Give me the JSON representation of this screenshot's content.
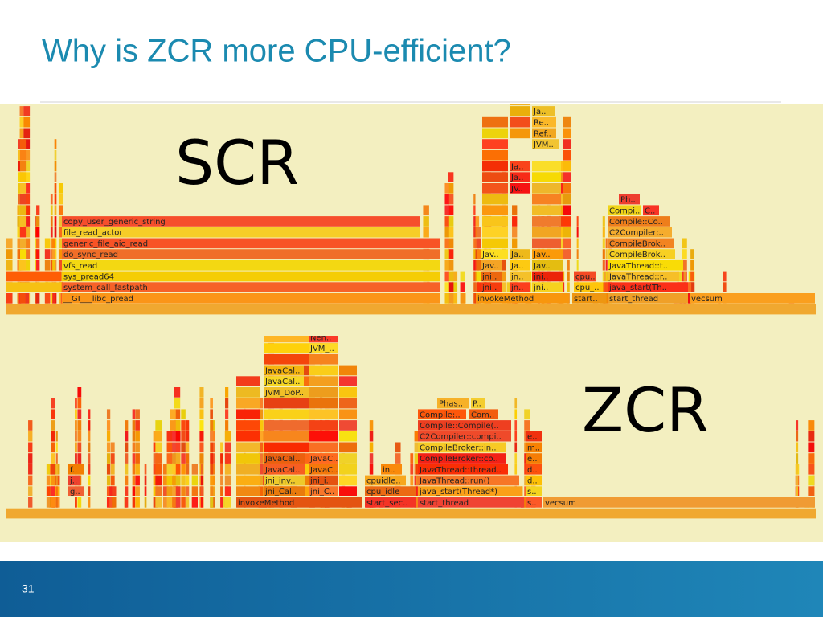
{
  "title": "Why is ZCR more CPU-efficient?",
  "page_number": "31",
  "scr": {
    "label": "SCR",
    "frames": [
      "copy_user_generic_string",
      "file_read_actor",
      "generic_file_aio_read",
      "do_sync_read",
      "vfs_read",
      "sys_pread64",
      "system_call_fastpath",
      "__GI___libc_pread",
      "invokeMethod",
      "start..",
      "start_thread",
      "vecsum",
      "jni..",
      "jn..",
      "jni..",
      "cpu_..",
      "java_start(Th..",
      "jni..",
      "jn..",
      "jni..",
      "cpu..",
      "JavaThread::r..",
      "Jav..",
      "Ja..",
      "Jav..",
      "JavaThread::t..",
      "Jav..",
      "Ja..",
      "Jav..",
      "CompileBrok..",
      "CompileBrok..",
      "C2Compiler:..",
      "Compile::Co..",
      "Compi..",
      "C..",
      "Ph..",
      "JV..",
      "Ja..",
      "Ja..",
      "JVM..",
      "Ref..",
      "Re..",
      "Ja.."
    ]
  },
  "zcr": {
    "label": "ZCR",
    "frames": [
      "invokeMethod",
      "start_sec..",
      "start_thread",
      "s..",
      "vecsum",
      "g..",
      "jni_Cal..",
      "jni_C..",
      "cpu_idle",
      "java_start(Thread*)",
      "s..",
      "j..",
      "jni_inv..",
      "jni_i..",
      "cpuidle..",
      "JavaThread::run()",
      "d..",
      "f..",
      "JavaCal..",
      "JavaC..",
      "in..",
      "JavaThread::thread..",
      "d..",
      "JavaCal..",
      "JavaC..",
      "CompileBroker::co..",
      "e..",
      "CompileBroker::in..",
      "m..",
      "C2Compiler::compi..",
      "e..",
      "Compile::Compile(..",
      "Compile:..",
      "Com..",
      "Phas..",
      "P..",
      "JVM_DoP..",
      "JavaCal..",
      "JavaCal..",
      "JVM_..",
      "Nen.."
    ]
  }
}
